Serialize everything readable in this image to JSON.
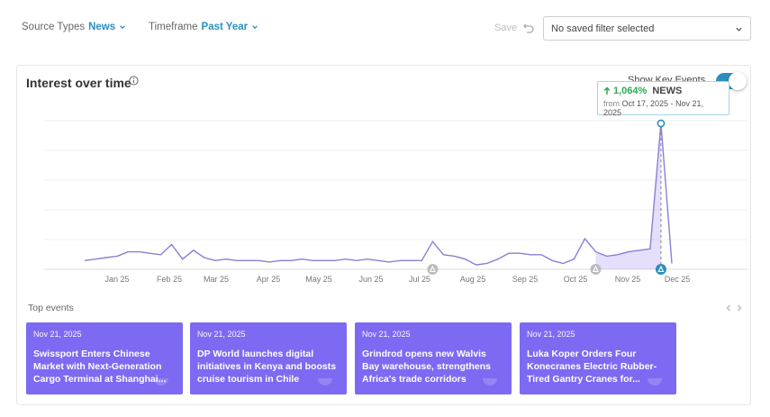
{
  "filters": {
    "source_types": {
      "label": "Source Types",
      "value": "News"
    },
    "timeframe": {
      "label": "Timeframe",
      "value": "Past Year"
    },
    "save_label": "Save",
    "saved_filter_placeholder": "No saved filter selected"
  },
  "card": {
    "title": "Interest over time",
    "key_events_label": "Show Key Events",
    "key_events_on": true
  },
  "tooltip": {
    "pct": "1,064%",
    "name": "NEWS",
    "from_label": "from",
    "range": "Oct 17, 2025 - Nov 21, 2025"
  },
  "colors": {
    "accent": "#2b8fbf",
    "series": "#8a7fd6",
    "event_card": "#7d6af2",
    "up": "#2eaa52"
  },
  "chart_data": {
    "type": "line",
    "series": [
      {
        "values": [
          6,
          7,
          8,
          9,
          12,
          12,
          11,
          10,
          17,
          7,
          13,
          8,
          6,
          7,
          6,
          6,
          6,
          5,
          6,
          6,
          7,
          6,
          6,
          6,
          7,
          6,
          7,
          6,
          5,
          6,
          6,
          6,
          19,
          10,
          9,
          7,
          3,
          4,
          7,
          11,
          11,
          10,
          10,
          6,
          4,
          7,
          21,
          12,
          9,
          10,
          12,
          13,
          14,
          100,
          4
        ]
      }
    ],
    "x_tick_labels": [
      "Jan 25",
      "Feb 25",
      "Mar 25",
      "Apr 25",
      "May 25",
      "Jun 25",
      "Jul 25",
      "Aug 25",
      "Sep 25",
      "Oct 25",
      "Nov 25",
      "Dec 25"
    ],
    "highlight_range_index": [
      47,
      53
    ],
    "peak_index": 53,
    "key_event_markers": [
      {
        "index": 32,
        "active": false
      },
      {
        "index": 47,
        "active": false
      },
      {
        "index": 53,
        "active": true
      }
    ],
    "ylim": [
      0,
      100
    ],
    "grid": true
  },
  "top_events": {
    "label": "Top events",
    "items": [
      {
        "date": "Nov 21, 2025",
        "title": "Swissport Enters Chinese Market with Next-Generation Cargo Terminal at Shanghai..."
      },
      {
        "date": "Nov 21, 2025",
        "title": "DP World launches digital initiatives in Kenya and boosts cruise tourism in Chile"
      },
      {
        "date": "Nov 21, 2025",
        "title": "Grindrod opens new Walvis Bay warehouse, strengthens Africa's trade corridors"
      },
      {
        "date": "Nov 21, 2025",
        "title": "Luka Koper Orders Four Konecranes Electric Rubber-Tired Gantry Cranes for..."
      }
    ]
  }
}
